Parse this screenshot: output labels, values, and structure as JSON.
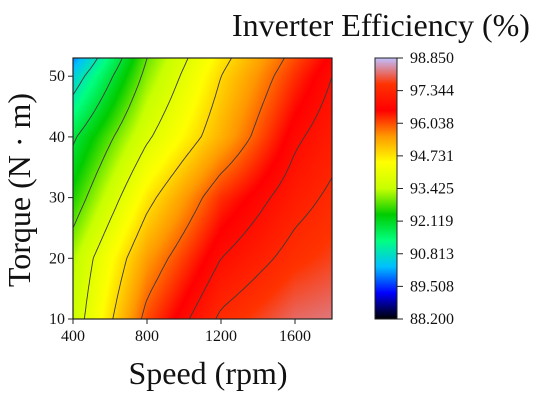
{
  "chart_data": {
    "type": "heatmap",
    "title": "Inverter Efficiency (%)",
    "xlabel": "Speed (rpm)",
    "ylabel": "Torque (N · m)",
    "xlim": [
      400,
      1800
    ],
    "ylim": [
      10,
      53
    ],
    "xticks": [
      "400",
      "800",
      "1200",
      "1600"
    ],
    "yticks": [
      "10",
      "20",
      "30",
      "40",
      "50"
    ],
    "colorbar": {
      "min": 88.2,
      "max": 98.85,
      "ticks": [
        "88.200",
        "89.508",
        "90.813",
        "92.119",
        "93.425",
        "94.731",
        "96.038",
        "97.344",
        "98.850"
      ],
      "colors": [
        "#000000",
        "#0000ff",
        "#00bfff",
        "#00ff80",
        "#00cc00",
        "#c8ff00",
        "#ffff00",
        "#ff9900",
        "#ff0000",
        "#ff3300",
        "#c0c0ff"
      ]
    },
    "grid": {
      "x": [
        400,
        800,
        1200,
        1600,
        1800
      ],
      "y": [
        10,
        20,
        30,
        40,
        50,
        53
      ],
      "z": [
        [
          93.6,
          96.2,
          97.6,
          98.2,
          98.3
        ],
        [
          93.4,
          95.6,
          97.0,
          97.7,
          97.9
        ],
        [
          92.6,
          94.8,
          96.4,
          97.3,
          97.6
        ],
        [
          91.9,
          93.9,
          95.4,
          96.9,
          97.3
        ],
        [
          90.6,
          93.2,
          95.0,
          96.4,
          97.0
        ],
        [
          90.0,
          93.0,
          94.8,
          96.2,
          96.8
        ]
      ]
    },
    "contour_levels": [
      91.0,
      92.0,
      93.0,
      94.0,
      95.0,
      96.0,
      97.0,
      97.5
    ]
  }
}
